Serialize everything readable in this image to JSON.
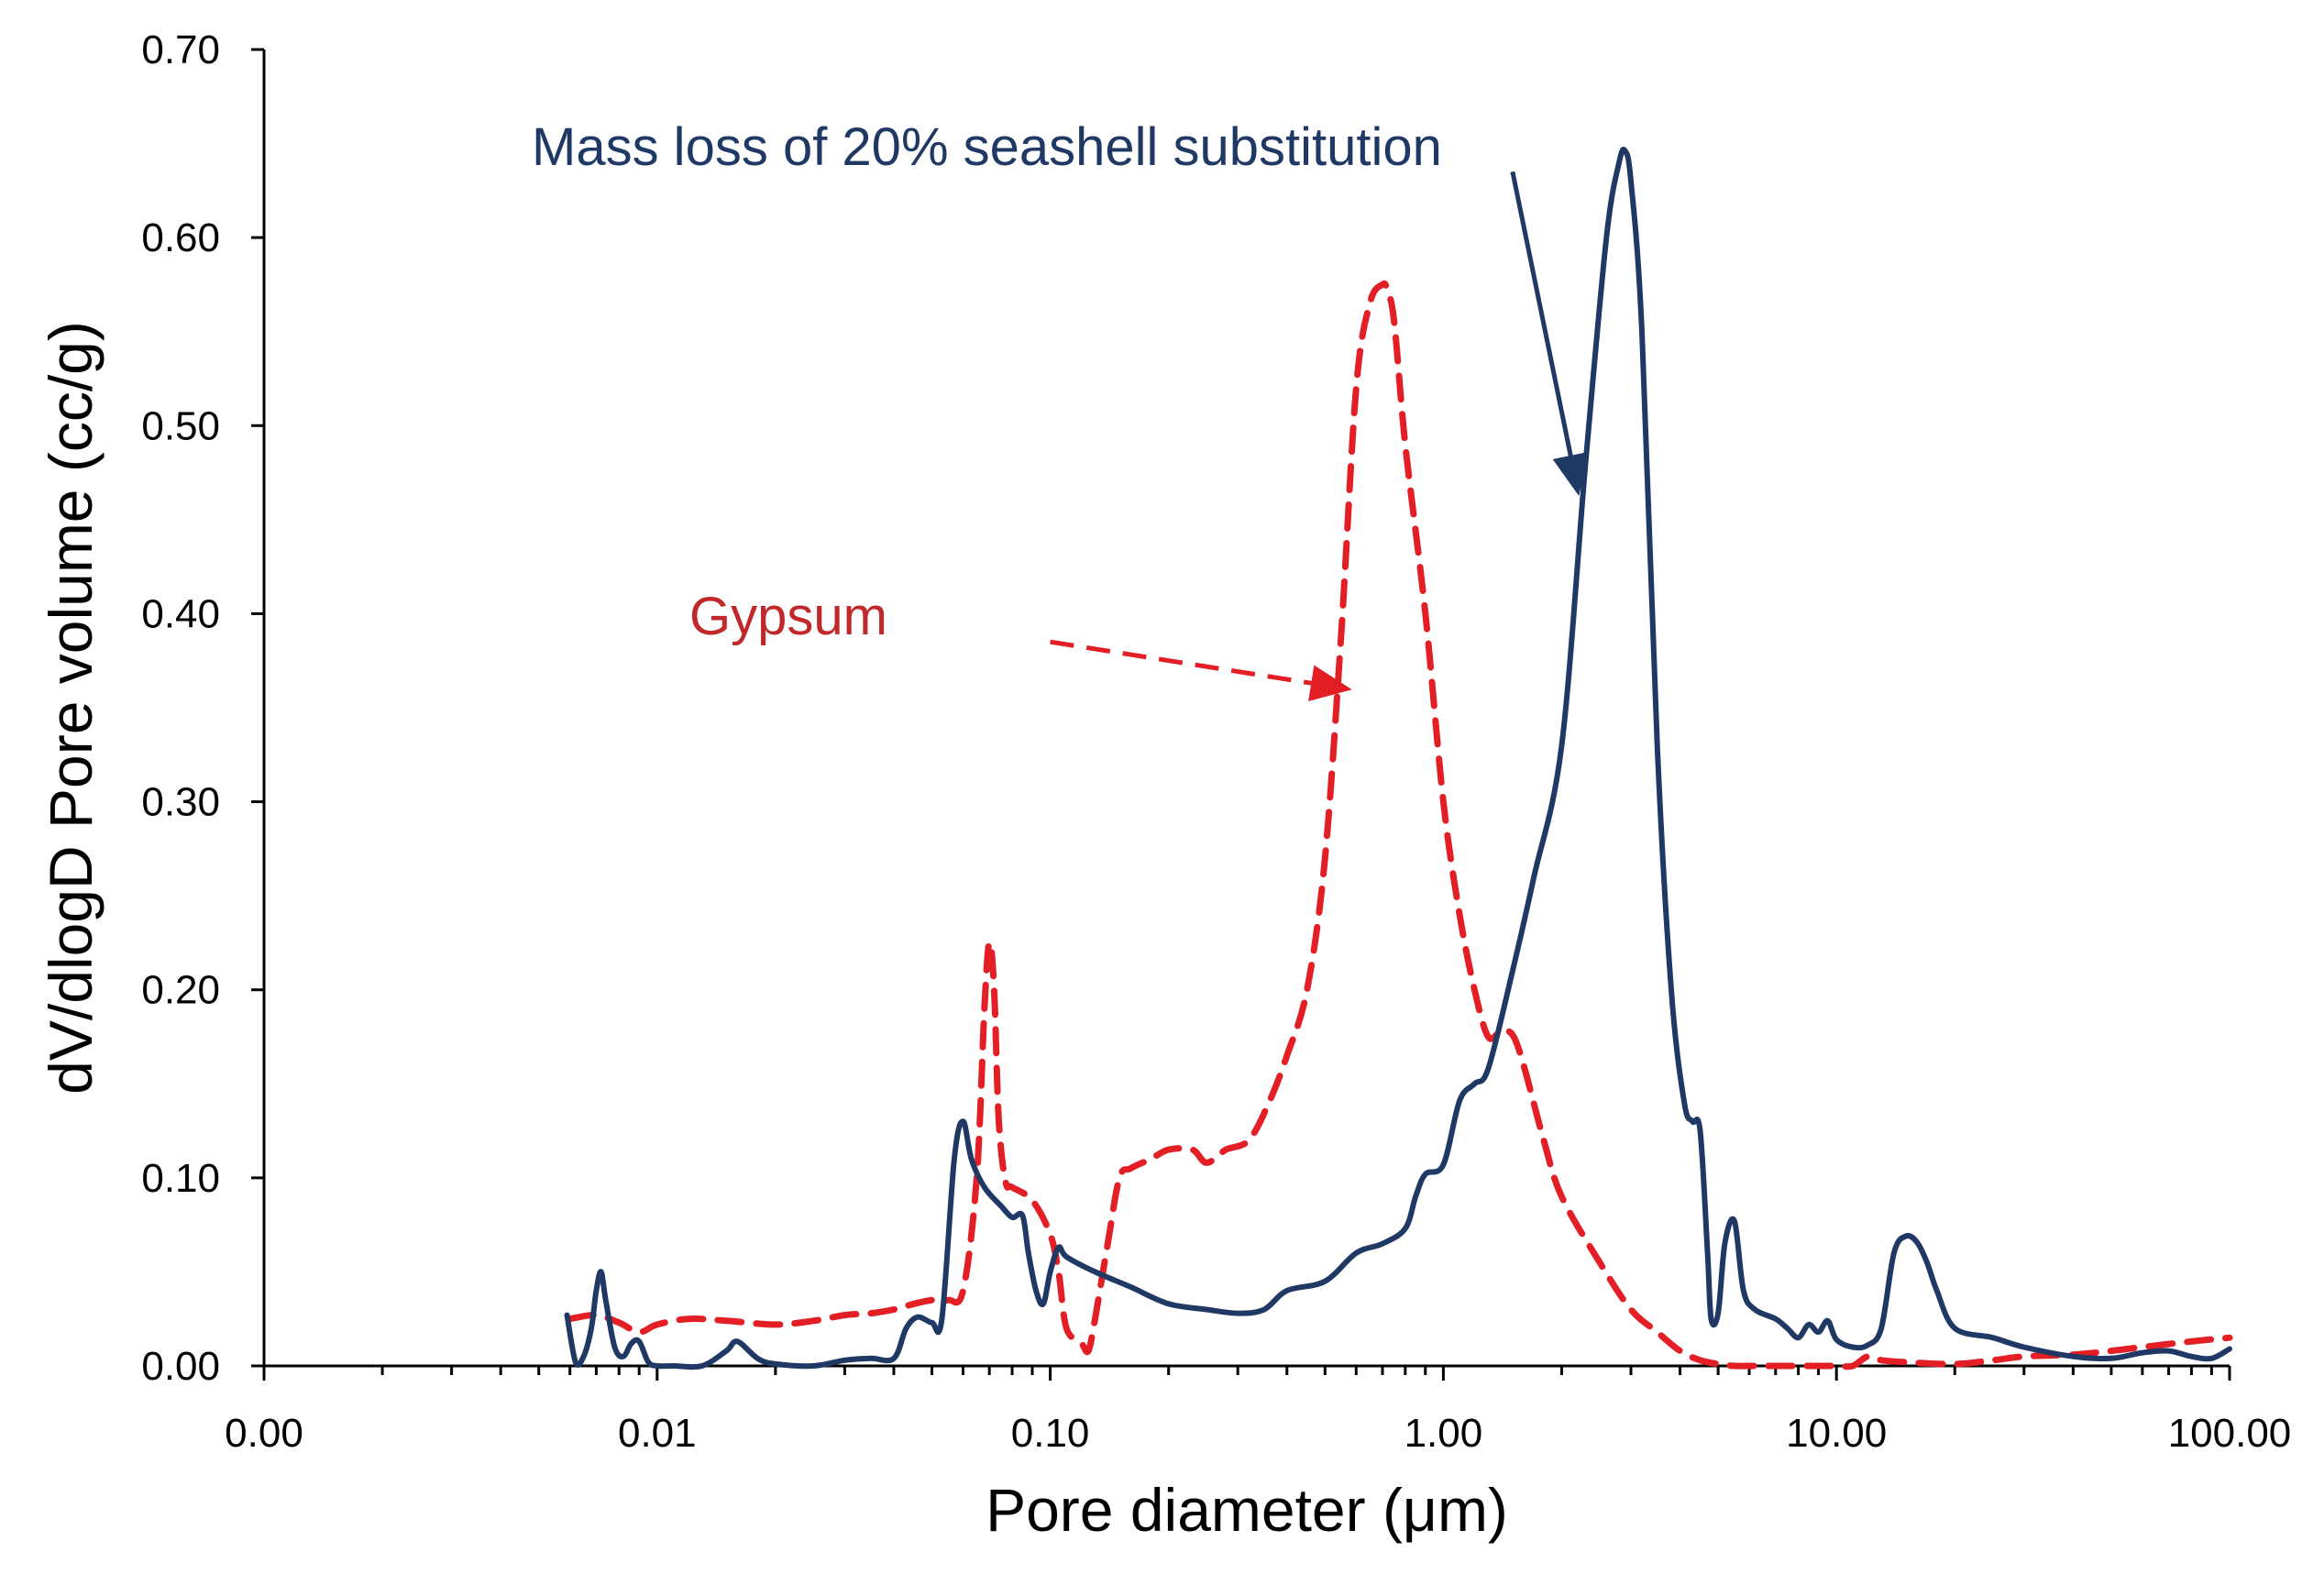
{
  "chart_data": {
    "type": "line",
    "title": "",
    "xlabel": "Pore diameter (μm)",
    "ylabel": "dV/dlogD Pore volume (cc/g)",
    "xscale": "log",
    "xlim": [
      0.001,
      100
    ],
    "ylim": [
      0,
      0.7
    ],
    "grid": false,
    "x_tick_values": [
      0.001,
      0.01,
      0.1,
      1,
      10,
      100
    ],
    "x_tick_labels": [
      "0.00",
      "0.01",
      "0.10",
      "1.00",
      "10.00",
      "100.00"
    ],
    "y_tick_values": [
      0,
      0.1,
      0.2,
      0.3,
      0.4,
      0.5,
      0.6,
      0.7
    ],
    "y_tick_labels": [
      "0.00",
      "0.10",
      "0.20",
      "0.30",
      "0.40",
      "0.50",
      "0.60",
      "0.70"
    ],
    "colors": {
      "seashell": "#1f3864",
      "gypsum": "#e31e24",
      "axis": "#000000"
    },
    "series": [
      {
        "name": "Mass loss of 20% seashell substitution",
        "style": "solid",
        "color": "#1f3864",
        "x": [
          0.0059,
          0.0062,
          0.0065,
          0.0068,
          0.007,
          0.0072,
          0.0074,
          0.0078,
          0.0082,
          0.0086,
          0.009,
          0.0095,
          0.01,
          0.011,
          0.013,
          0.015,
          0.016,
          0.018,
          0.02,
          0.025,
          0.03,
          0.035,
          0.04,
          0.043,
          0.046,
          0.05,
          0.053,
          0.057,
          0.06,
          0.063,
          0.068,
          0.075,
          0.08,
          0.085,
          0.088,
          0.092,
          0.096,
          0.1,
          0.105,
          0.11,
          0.13,
          0.16,
          0.2,
          0.25,
          0.3,
          0.35,
          0.4,
          0.5,
          0.6,
          0.7,
          0.8,
          0.85,
          0.9,
          1.0,
          1.1,
          1.2,
          1.3,
          1.5,
          1.7,
          2.0,
          2.3,
          2.6,
          2.8,
          2.9,
          3.0,
          3.2,
          3.5,
          3.8,
          4.1,
          4.3,
          4.5,
          4.7,
          4.8,
          5.0,
          5.2,
          5.5,
          5.8,
          6.2,
          7.0,
          7.5,
          8.0,
          8.5,
          9.0,
          9.5,
          10.0,
          11.0,
          12.0,
          13.0,
          14.0,
          15.0,
          16.0,
          17.0,
          18.0,
          20.0,
          25.0,
          30.0,
          40.0,
          50.0,
          60.0,
          70.0,
          80.0,
          90.0,
          100.0
        ],
        "y": [
          0.027,
          0.002,
          0.005,
          0.02,
          0.04,
          0.05,
          0.035,
          0.01,
          0.005,
          0.012,
          0.013,
          0.002,
          0.0,
          0.0,
          0.0,
          0.008,
          0.013,
          0.004,
          0.001,
          0.0,
          0.003,
          0.004,
          0.004,
          0.02,
          0.026,
          0.023,
          0.025,
          0.11,
          0.13,
          0.11,
          0.095,
          0.085,
          0.079,
          0.08,
          0.06,
          0.04,
          0.033,
          0.05,
          0.063,
          0.058,
          0.05,
          0.042,
          0.033,
          0.03,
          0.028,
          0.03,
          0.04,
          0.045,
          0.06,
          0.065,
          0.073,
          0.09,
          0.102,
          0.107,
          0.141,
          0.15,
          0.158,
          0.21,
          0.26,
          0.33,
          0.48,
          0.6,
          0.64,
          0.646,
          0.63,
          0.55,
          0.33,
          0.2,
          0.14,
          0.13,
          0.125,
          0.06,
          0.025,
          0.028,
          0.065,
          0.077,
          0.04,
          0.03,
          0.025,
          0.02,
          0.015,
          0.022,
          0.018,
          0.024,
          0.014,
          0.01,
          0.011,
          0.02,
          0.06,
          0.069,
          0.066,
          0.055,
          0.04,
          0.02,
          0.015,
          0.01,
          0.005,
          0.004,
          0.007,
          0.008,
          0.005,
          0.004,
          0.009
        ]
      },
      {
        "name": "Gypsum",
        "style": "dashed",
        "color": "#e31e24",
        "x": [
          0.006,
          0.007,
          0.008,
          0.009,
          0.01,
          0.012,
          0.015,
          0.02,
          0.025,
          0.03,
          0.035,
          0.04,
          0.045,
          0.05,
          0.055,
          0.06,
          0.065,
          0.068,
          0.07,
          0.072,
          0.074,
          0.077,
          0.08,
          0.09,
          0.1,
          0.105,
          0.11,
          0.12,
          0.125,
          0.13,
          0.14,
          0.15,
          0.16,
          0.18,
          0.2,
          0.23,
          0.25,
          0.28,
          0.32,
          0.36,
          0.4,
          0.45,
          0.5,
          0.55,
          0.6,
          0.65,
          0.7,
          0.72,
          0.75,
          0.8,
          0.9,
          1.0,
          1.1,
          1.2,
          1.3,
          1.4,
          1.5,
          1.6,
          1.8,
          2.0,
          2.5,
          3.0,
          3.5,
          4.0,
          4.5,
          5.0,
          5.5,
          6.0,
          7.0,
          8.0,
          10.0,
          11.0,
          12.0,
          13.0,
          15.0,
          20.0,
          25.0,
          30.0,
          40.0,
          50.0,
          60.0,
          80.0,
          100.0
        ],
        "y": [
          0.025,
          0.027,
          0.023,
          0.018,
          0.022,
          0.025,
          0.024,
          0.022,
          0.024,
          0.027,
          0.028,
          0.03,
          0.033,
          0.035,
          0.035,
          0.04,
          0.1,
          0.19,
          0.225,
          0.2,
          0.13,
          0.098,
          0.095,
          0.088,
          0.07,
          0.05,
          0.02,
          0.012,
          0.008,
          0.025,
          0.065,
          0.1,
          0.105,
          0.11,
          0.115,
          0.115,
          0.108,
          0.115,
          0.12,
          0.14,
          0.165,
          0.2,
          0.27,
          0.39,
          0.52,
          0.565,
          0.575,
          0.572,
          0.555,
          0.49,
          0.4,
          0.3,
          0.24,
          0.2,
          0.175,
          0.178,
          0.176,
          0.16,
          0.12,
          0.09,
          0.055,
          0.03,
          0.018,
          0.008,
          0.003,
          0.001,
          0.0,
          0.0,
          0.0,
          0.0,
          0.0,
          0.0,
          0.005,
          0.003,
          0.002,
          0.001,
          0.003,
          0.005,
          0.006,
          0.008,
          0.01,
          0.013,
          0.015
        ]
      }
    ],
    "annotations": [
      {
        "text": "Mass loss of 20% seashell substitution",
        "color": "#1f3864",
        "style": "solid",
        "arrow_tip": {
          "x": 2.2,
          "y": 0.465
        },
        "arrow_tail": {
          "x": 1.5,
          "y": 0.635
        }
      },
      {
        "text": "Gypsum",
        "color": "#c0282a",
        "style": "dashed",
        "arrow_tip": {
          "x": 0.57,
          "y": 0.36
        },
        "arrow_tail": {
          "x": 0.1,
          "y": 0.385
        }
      }
    ]
  }
}
